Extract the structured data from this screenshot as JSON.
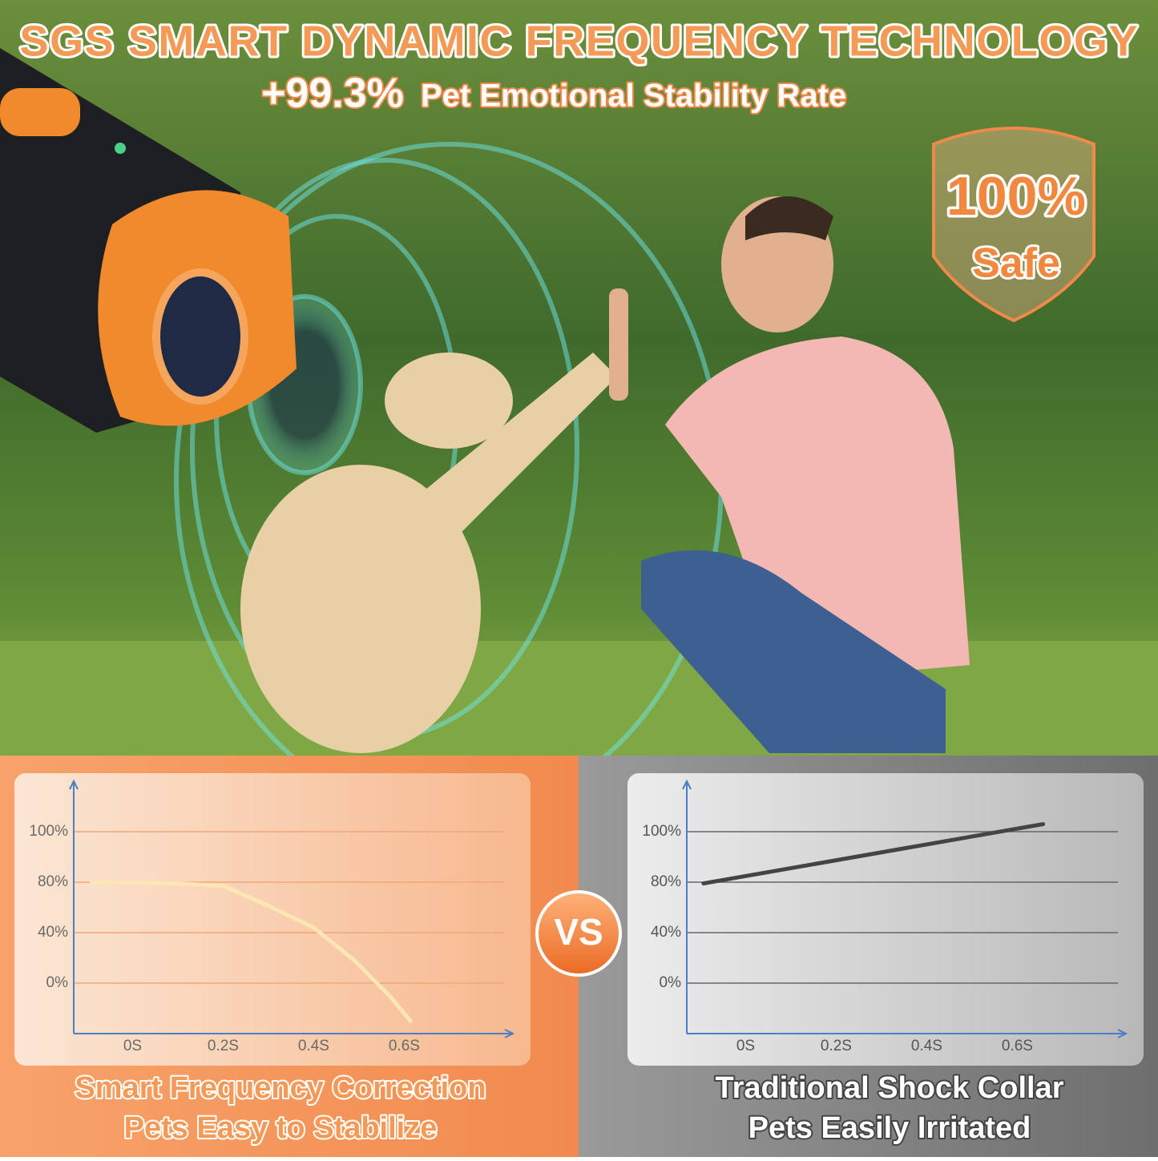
{
  "header": {
    "title": "SGS SMART DYNAMIC FREQUENCY TECHNOLOGY",
    "highlight": "+99.3%",
    "subtitle": "Pet Emotional Stability Rate"
  },
  "badge": {
    "value": "100%",
    "label": "Safe"
  },
  "vs": "VS",
  "chart_data": [
    {
      "type": "line",
      "title": "Smart Frequency Correction",
      "subtitle": "Pets Easy to Stabilize",
      "x": [
        -0.09,
        0.1,
        0.2,
        0.29,
        0.4,
        0.49,
        0.57,
        0.614
      ],
      "values": [
        80,
        79,
        77,
        63,
        44,
        18,
        -11,
        -30
      ],
      "color": "#fbe6b4",
      "grid_color": "#f0a77a",
      "xlim": [
        -0.13,
        0.84
      ],
      "ylim": [
        -40,
        120
      ],
      "xticks": [
        {
          "value": 0,
          "label": "0S"
        },
        {
          "value": 0.2,
          "label": "0.2S"
        },
        {
          "value": 0.4,
          "label": "0.4S"
        },
        {
          "value": 0.6,
          "label": "0.6S"
        }
      ],
      "yticks": [
        {
          "value": 0,
          "label": "0%"
        },
        {
          "value": 40,
          "label": "40%"
        },
        {
          "value": 80,
          "label": "80%"
        },
        {
          "value": 100,
          "label": "100%"
        }
      ],
      "grid": true
    },
    {
      "type": "line",
      "title": "Traditional Shock Collar",
      "subtitle": "Pets Easily Irritated",
      "x": [
        -0.093,
        0.657
      ],
      "values": [
        79,
        103
      ],
      "color": "#444444",
      "grid_color": "#666666",
      "xlim": [
        -0.13,
        0.84
      ],
      "ylim": [
        -40,
        120
      ],
      "xticks": [
        {
          "value": 0,
          "label": "0S"
        },
        {
          "value": 0.2,
          "label": "0.2S"
        },
        {
          "value": 0.4,
          "label": "0.4S"
        },
        {
          "value": 0.6,
          "label": "0.6S"
        }
      ],
      "yticks": [
        {
          "value": 0,
          "label": "0%"
        },
        {
          "value": 40,
          "label": "40%"
        },
        {
          "value": 80,
          "label": "80%"
        },
        {
          "value": 100,
          "label": "100%"
        }
      ],
      "grid": true
    }
  ]
}
